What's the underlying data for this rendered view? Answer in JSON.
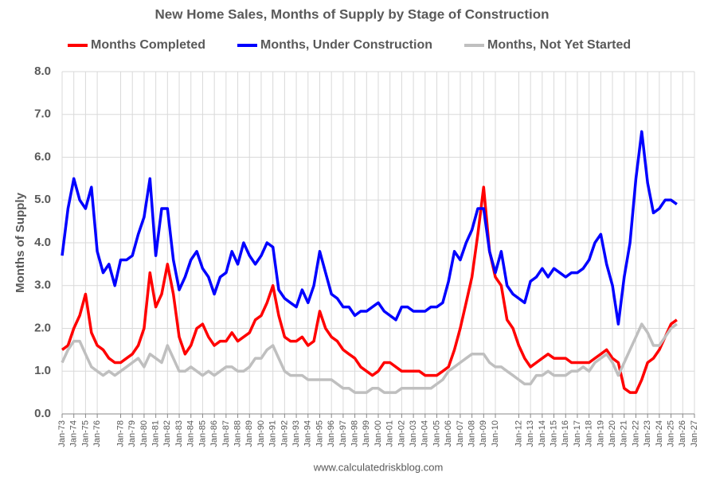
{
  "chart_data": {
    "type": "line",
    "title": "New Home Sales, Months of Supply by Stage of Construction",
    "y_label": "Months of Supply",
    "source": "www.calculatedriskblog.com",
    "x": [
      1973,
      1973.5,
      1974,
      1974.5,
      1975,
      1975.5,
      1976,
      1976.5,
      1977,
      1977.5,
      1978,
      1978.5,
      1979,
      1979.5,
      1980,
      1980.5,
      1981,
      1981.5,
      1982,
      1982.5,
      1983,
      1983.5,
      1984,
      1984.5,
      1985,
      1985.5,
      1986,
      1986.5,
      1987,
      1987.5,
      1988,
      1988.5,
      1989,
      1989.5,
      1990,
      1990.5,
      1991,
      1991.5,
      1992,
      1992.5,
      1993,
      1993.5,
      1994,
      1994.5,
      1995,
      1995.5,
      1996,
      1996.5,
      1997,
      1997.5,
      1998,
      1998.5,
      1999,
      1999.5,
      2000,
      2000.5,
      2001,
      2001.5,
      2002,
      2002.5,
      2003,
      2003.5,
      2004,
      2004.5,
      2005,
      2005.5,
      2006,
      2006.5,
      2007,
      2007.5,
      2008,
      2008.5,
      2009,
      2009.5,
      2010,
      2010.5,
      2011,
      2011.5,
      2012,
      2012.5,
      2013,
      2013.5,
      2014,
      2014.5,
      2015,
      2015.5,
      2016,
      2016.5,
      2017,
      2017.5,
      2018,
      2018.5,
      2019,
      2019.5,
      2020,
      2020.5,
      2021,
      2021.5,
      2022,
      2022.5,
      2023,
      2023.5,
      2024,
      2024.5,
      2025,
      2025.5
    ],
    "series": [
      {
        "name": "Months Completed",
        "color": "#ff0000",
        "values": [
          1.5,
          1.6,
          2.0,
          2.3,
          2.8,
          1.9,
          1.6,
          1.5,
          1.3,
          1.2,
          1.2,
          1.3,
          1.4,
          1.6,
          2.0,
          3.3,
          2.5,
          2.8,
          3.5,
          2.8,
          1.8,
          1.4,
          1.6,
          2.0,
          2.1,
          1.8,
          1.6,
          1.7,
          1.7,
          1.9,
          1.7,
          1.8,
          1.9,
          2.2,
          2.3,
          2.6,
          3.0,
          2.3,
          1.8,
          1.7,
          1.7,
          1.8,
          1.6,
          1.7,
          2.4,
          2.0,
          1.8,
          1.7,
          1.5,
          1.4,
          1.3,
          1.1,
          1.0,
          0.9,
          1.0,
          1.2,
          1.2,
          1.1,
          1.0,
          1.0,
          1.0,
          1.0,
          0.9,
          0.9,
          0.9,
          1.0,
          1.1,
          1.5,
          2.0,
          2.6,
          3.2,
          4.2,
          5.3,
          3.8,
          3.2,
          3.0,
          2.2,
          2.0,
          1.6,
          1.3,
          1.1,
          1.2,
          1.3,
          1.4,
          1.3,
          1.3,
          1.3,
          1.2,
          1.2,
          1.2,
          1.2,
          1.3,
          1.4,
          1.5,
          1.3,
          1.2,
          0.6,
          0.5,
          0.5,
          0.8,
          1.2,
          1.3,
          1.5,
          1.8,
          2.1,
          2.2
        ]
      },
      {
        "name": "Months, Under Construction",
        "color": "#0000ff",
        "values": [
          3.7,
          4.8,
          5.5,
          5.0,
          4.8,
          5.3,
          3.8,
          3.3,
          3.5,
          3.0,
          3.6,
          3.6,
          3.7,
          4.2,
          4.6,
          5.5,
          3.7,
          4.8,
          4.8,
          3.6,
          2.9,
          3.2,
          3.6,
          3.8,
          3.4,
          3.2,
          2.8,
          3.2,
          3.3,
          3.8,
          3.5,
          4.0,
          3.7,
          3.5,
          3.7,
          4.0,
          3.9,
          2.9,
          2.7,
          2.6,
          2.5,
          2.9,
          2.6,
          3.0,
          3.8,
          3.3,
          2.8,
          2.7,
          2.5,
          2.5,
          2.3,
          2.4,
          2.4,
          2.5,
          2.6,
          2.4,
          2.3,
          2.2,
          2.5,
          2.5,
          2.4,
          2.4,
          2.4,
          2.5,
          2.5,
          2.6,
          3.1,
          3.8,
          3.6,
          4.0,
          4.3,
          4.8,
          4.8,
          3.8,
          3.3,
          3.8,
          3.0,
          2.8,
          2.7,
          2.6,
          3.1,
          3.2,
          3.4,
          3.2,
          3.4,
          3.3,
          3.2,
          3.3,
          3.3,
          3.4,
          3.6,
          4.0,
          4.2,
          3.5,
          3.0,
          2.1,
          3.2,
          4.0,
          5.5,
          6.6,
          5.4,
          4.7,
          4.8,
          5.0,
          5.0,
          4.9
        ]
      },
      {
        "name": "Months, Not Yet Started",
        "color": "#bfbfbf",
        "values": [
          1.2,
          1.5,
          1.7,
          1.7,
          1.4,
          1.1,
          1.0,
          0.9,
          1.0,
          0.9,
          1.0,
          1.1,
          1.2,
          1.3,
          1.1,
          1.4,
          1.3,
          1.2,
          1.6,
          1.3,
          1.0,
          1.0,
          1.1,
          1.0,
          0.9,
          1.0,
          0.9,
          1.0,
          1.1,
          1.1,
          1.0,
          1.0,
          1.1,
          1.3,
          1.3,
          1.5,
          1.6,
          1.3,
          1.0,
          0.9,
          0.9,
          0.9,
          0.8,
          0.8,
          0.8,
          0.8,
          0.8,
          0.7,
          0.6,
          0.6,
          0.5,
          0.5,
          0.5,
          0.6,
          0.6,
          0.5,
          0.5,
          0.5,
          0.6,
          0.6,
          0.6,
          0.6,
          0.6,
          0.6,
          0.7,
          0.8,
          1.0,
          1.1,
          1.2,
          1.3,
          1.4,
          1.4,
          1.4,
          1.2,
          1.1,
          1.1,
          1.0,
          0.9,
          0.8,
          0.7,
          0.7,
          0.9,
          0.9,
          1.0,
          0.9,
          0.9,
          0.9,
          1.0,
          1.0,
          1.1,
          1.0,
          1.2,
          1.3,
          1.4,
          1.2,
          0.9,
          1.2,
          1.5,
          1.8,
          2.1,
          1.9,
          1.6,
          1.6,
          1.8,
          2.0,
          2.1
        ]
      }
    ],
    "xlim": [
      1973,
      2027
    ],
    "xticks": [
      {
        "value": 1973,
        "label": "Jan-73"
      },
      {
        "value": 1974,
        "label": "Jan-74"
      },
      {
        "value": 1975,
        "label": "Jan-75"
      },
      {
        "value": 1976,
        "label": "Jan-76"
      },
      {
        "value": 1978,
        "label": "Jan-78"
      },
      {
        "value": 1979,
        "label": "Jan-79"
      },
      {
        "value": 1980,
        "label": "Jan-80"
      },
      {
        "value": 1981,
        "label": "Jan-81"
      },
      {
        "value": 1982,
        "label": "Jan-82"
      },
      {
        "value": 1983,
        "label": "Jan-83"
      },
      {
        "value": 1984,
        "label": "Jan-84"
      },
      {
        "value": 1985,
        "label": "Jan-85"
      },
      {
        "value": 1986,
        "label": "Jan-86"
      },
      {
        "value": 1987,
        "label": "Jan-87"
      },
      {
        "value": 1988,
        "label": "Jan-88"
      },
      {
        "value": 1989,
        "label": "Jan-89"
      },
      {
        "value": 1990,
        "label": "Jan-90"
      },
      {
        "value": 1991,
        "label": "Jan-91"
      },
      {
        "value": 1992,
        "label": "Jan-92"
      },
      {
        "value": 1993,
        "label": "Jan-93"
      },
      {
        "value": 1994,
        "label": "Jan-94"
      },
      {
        "value": 1995,
        "label": "Jan-95"
      },
      {
        "value": 1996,
        "label": "Jan-96"
      },
      {
        "value": 1997,
        "label": "Jan-97"
      },
      {
        "value": 1998,
        "label": "Jan-98"
      },
      {
        "value": 1999,
        "label": "Jan-99"
      },
      {
        "value": 2000,
        "label": "Jan-00"
      },
      {
        "value": 2001,
        "label": "Jan-01"
      },
      {
        "value": 2002,
        "label": "Jan-02"
      },
      {
        "value": 2003,
        "label": "Jan-03"
      },
      {
        "value": 2004,
        "label": "Jan-04"
      },
      {
        "value": 2005,
        "label": "Jan-05"
      },
      {
        "value": 2006,
        "label": "Jan-06"
      },
      {
        "value": 2007,
        "label": "Jan-07"
      },
      {
        "value": 2008,
        "label": "Jan-08"
      },
      {
        "value": 2009,
        "label": "Jan-09"
      },
      {
        "value": 2010,
        "label": "Jan-10"
      },
      {
        "value": 2012,
        "label": "Jan-12"
      },
      {
        "value": 2013,
        "label": "Jan-13"
      },
      {
        "value": 2014,
        "label": "Jan-14"
      },
      {
        "value": 2015,
        "label": "Jan-15"
      },
      {
        "value": 2016,
        "label": "Jan-16"
      },
      {
        "value": 2017,
        "label": "Jan-17"
      },
      {
        "value": 2018,
        "label": "Jan-18"
      },
      {
        "value": 2019,
        "label": "Jan-19"
      },
      {
        "value": 2020,
        "label": "Jan-20"
      },
      {
        "value": 2021,
        "label": "Jan-21"
      },
      {
        "value": 2022,
        "label": "Jan-22"
      },
      {
        "value": 2023,
        "label": "Jan-23"
      },
      {
        "value": 2024,
        "label": "Jan-24"
      },
      {
        "value": 2025,
        "label": "Jan-25"
      },
      {
        "value": 2026,
        "label": "Jan-26"
      },
      {
        "value": 2027,
        "label": "Jan-27"
      }
    ],
    "ylim": [
      0,
      8
    ],
    "yticks": [
      {
        "value": 0,
        "label": "0.0"
      },
      {
        "value": 1,
        "label": "1.0"
      },
      {
        "value": 2,
        "label": "2.0"
      },
      {
        "value": 3,
        "label": "3.0"
      },
      {
        "value": 4,
        "label": "4.0"
      },
      {
        "value": 5,
        "label": "5.0"
      },
      {
        "value": 6,
        "label": "6.0"
      },
      {
        "value": 7,
        "label": "7.0"
      },
      {
        "value": 8,
        "label": "8.0"
      }
    ],
    "grid": true,
    "legend": "top"
  }
}
